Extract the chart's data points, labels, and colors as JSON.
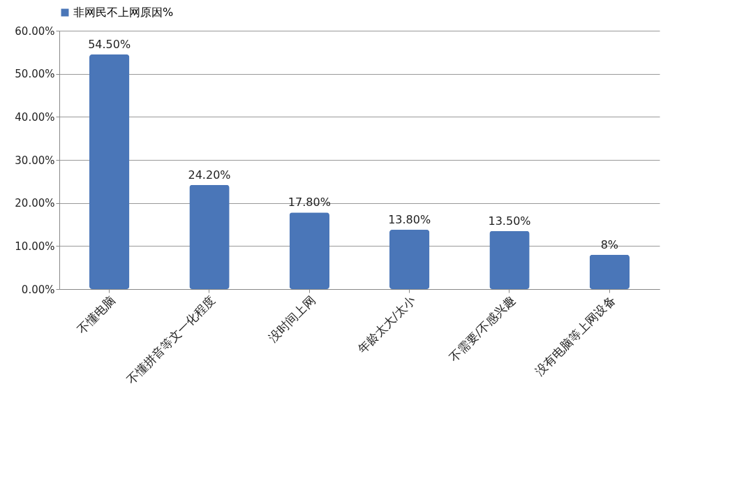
{
  "chart_data": {
    "type": "bar",
    "categories": [
      "不懂电脑",
      "不懂拼音等文一化程度",
      "没时间上网",
      "年龄太大/太小",
      "不需要/不感兴趣",
      "没有电脑等上网设备"
    ],
    "series": [
      {
        "name": "非网民不上网原因%",
        "color": "#4a76b8",
        "values": [
          54.5,
          24.2,
          17.8,
          13.8,
          13.5,
          8
        ],
        "value_labels": [
          "54.50%",
          "24.20%",
          "17.80%",
          "13.80%",
          "13.50%",
          "8%"
        ]
      }
    ],
    "ylim": [
      0,
      60
    ],
    "yticks": [
      {
        "value": 0,
        "label": "0.00%"
      },
      {
        "value": 10,
        "label": "10.00%"
      },
      {
        "value": 20,
        "label": "20.00%"
      },
      {
        "value": 30,
        "label": "30.00%"
      },
      {
        "value": 40,
        "label": "40.00%"
      },
      {
        "value": 50,
        "label": "50.00%"
      },
      {
        "value": 60,
        "label": "60.00%"
      }
    ],
    "grid": "y",
    "legend": "top"
  }
}
